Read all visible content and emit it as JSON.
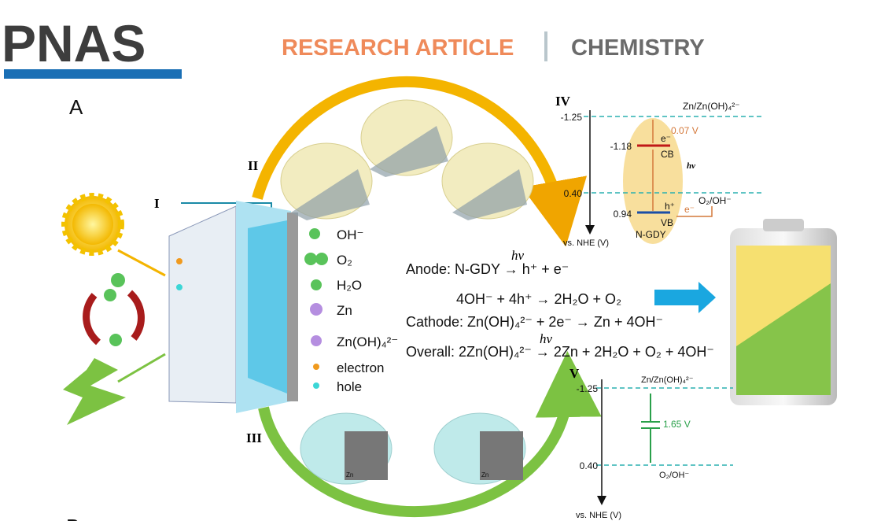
{
  "header": {
    "logo": "PNAS",
    "section": "RESEARCH ARTICLE",
    "subject": "CHEMISTRY"
  },
  "figure": {
    "panel_labels": [
      "A",
      "B"
    ],
    "stages": [
      "I",
      "II",
      "III",
      "IV",
      "V"
    ],
    "legend": [
      "OH⁻",
      "O₂",
      "H₂O",
      "Zn",
      "Zn(OH)₄²⁻",
      "electron",
      "hole"
    ],
    "equations": {
      "anode": "Anode: N-GDY → h⁺ + e⁻",
      "anode_hv": "hv",
      "anode_2": "4OH⁻ + 4h⁺ → 2H₂O + O₂",
      "cathode": "Cathode: Zn(OH)₄²⁻ + 2e⁻ → Zn + 4OH⁻",
      "overall": "Overall: 2Zn(OH)₄²⁻ → 2Zn + 2H₂O + O₂ + 4OH⁻",
      "overall_hv": "hv"
    },
    "diagram_iv": {
      "top_level": "-1.25",
      "cb_level": "-1.18",
      "mid_level": "0.40",
      "vb_level": "0.94",
      "zn_couple": "Zn/Zn(OH)₄²⁻",
      "gap": "0.07 V",
      "electron": "e⁻",
      "cb_label": "CB",
      "hv": "hv",
      "o2_couple": "O₂/OH⁻",
      "electron_2": "e⁻",
      "hole": "h⁺",
      "vb_label": "VB",
      "material": "N-GDY",
      "axis_label": "vs. NHE (V)"
    },
    "diagram_v": {
      "top_level": "-1.25",
      "bottom_level": "0.40",
      "zn_couple": "Zn/Zn(OH)₄²⁻",
      "voltage": "1.65 V",
      "o2_couple": "O₂/OH⁻",
      "axis_label": "vs. NHE (V)"
    },
    "inset_labels": [
      "Zn",
      "Zn"
    ]
  }
}
